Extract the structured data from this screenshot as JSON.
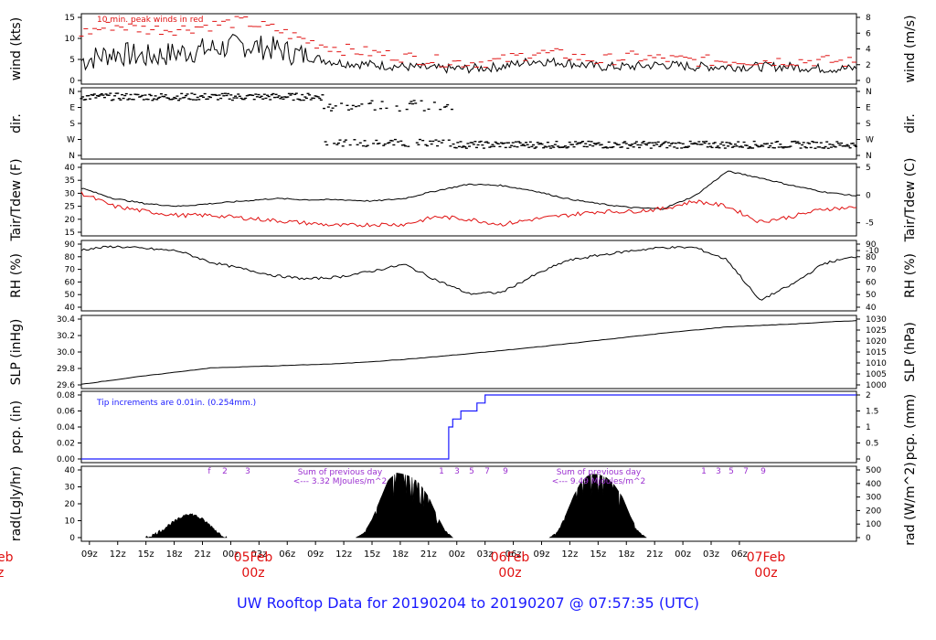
{
  "title": "UW Rooftop Data for 20190204  to  20190207 @ 07:57:35  (UTC)",
  "x_axis": {
    "hour_ticks": [
      "09z",
      "12z",
      "15z",
      "18z",
      "21z",
      "00z",
      "03z",
      "06z",
      "09z",
      "12z",
      "15z",
      "18z",
      "21z",
      "00z",
      "03z",
      "06z",
      "09z",
      "12z",
      "15z",
      "18z",
      "21z",
      "00z",
      "03z",
      "06z"
    ],
    "date_markers": [
      {
        "date": "05Feb",
        "hour": "00z"
      },
      {
        "date": "06Feb",
        "hour": "00z"
      },
      {
        "date": "07Feb",
        "hour": "00z"
      }
    ],
    "cutoff_label": {
      "date": "eb",
      "hour": "z"
    }
  },
  "colors": {
    "data": "#000000",
    "peak": "#e01010",
    "dewpoint": "#e01010",
    "precip": "#1a1aff",
    "note_purple": "#9b30d0",
    "title": "#1a1aff"
  },
  "chart_data": [
    {
      "type": "line",
      "name": "wind",
      "ylabel_left": "wind (kts)",
      "ylabel_right": "wind (m/s)",
      "annotation": "10 min. peak winds in red",
      "ylim": [
        0,
        18
      ],
      "yticks_left": [
        "0",
        "5",
        "10",
        "15"
      ],
      "yticks_right": [
        "0",
        "2",
        "4",
        "6",
        "8"
      ],
      "x_hours": [
        0,
        4,
        8,
        12,
        16,
        20,
        24,
        28,
        32,
        36,
        40,
        44,
        48,
        52,
        56,
        60,
        64,
        68,
        72,
        76,
        80,
        84,
        88,
        92,
        96
      ],
      "series": [
        {
          "name": "wind",
          "values": [
            5,
            7,
            6,
            7,
            8,
            9,
            8,
            6,
            4.5,
            4,
            3.5,
            3,
            3,
            3.5,
            5,
            4.5,
            3.5,
            3.5,
            4,
            3.5,
            3.5,
            3.5,
            3.5,
            3,
            3
          ]
        },
        {
          "name": "peak",
          "values": [
            12,
            14,
            13,
            13,
            14,
            15,
            13,
            10,
            8,
            7,
            6,
            5,
            4.5,
            5,
            7,
            6.5,
            5,
            6,
            5.5,
            5,
            5,
            5,
            5,
            5,
            4.5
          ]
        }
      ]
    },
    {
      "type": "scatter",
      "name": "direction",
      "ylabel_left": "dir.",
      "ylabel_right": "dir.",
      "yticks_left": [
        "N",
        "W",
        "S",
        "E",
        "N"
      ],
      "yticks_right": [
        "N",
        "W",
        "S",
        "E",
        "N"
      ]
    },
    {
      "type": "line",
      "name": "temperature",
      "ylabel_left": "Tair/Tdew (F)",
      "ylabel_right": "Tair/Tdew (C)",
      "ylim": [
        15,
        40
      ],
      "yticks_left": [
        "15",
        "20",
        "25",
        "30",
        "35",
        "40"
      ],
      "yticks_right": [
        "-10",
        "-5",
        "0",
        "5"
      ],
      "x_hours": [
        0,
        4,
        8,
        12,
        16,
        20,
        24,
        28,
        32,
        36,
        40,
        44,
        48,
        52,
        56,
        60,
        64,
        68,
        72,
        76,
        80,
        84,
        88,
        92,
        96
      ],
      "series": [
        {
          "name": "Tair",
          "values": [
            32,
            28,
            26,
            25,
            26,
            27,
            28,
            27.5,
            27.5,
            27,
            28,
            31,
            33.5,
            33,
            31,
            28,
            26,
            24.5,
            24,
            29,
            38.5,
            36,
            33,
            30.5,
            29
          ]
        },
        {
          "name": "Tdew",
          "values": [
            30,
            25,
            23,
            21.5,
            21.5,
            20.5,
            19.5,
            18.5,
            17.5,
            18,
            18,
            21,
            20,
            18,
            20,
            21.5,
            23,
            23,
            24,
            27,
            25,
            19,
            21,
            24,
            24.5
          ]
        }
      ]
    },
    {
      "type": "line",
      "name": "humidity",
      "ylabel_left": "RH (%)",
      "ylabel_right": "RH (%)",
      "ylim": [
        38,
        94
      ],
      "yticks_left": [
        "40",
        "50",
        "60",
        "70",
        "80",
        "90"
      ],
      "yticks_right": [
        "40",
        "50",
        "60",
        "70",
        "80",
        "90"
      ],
      "x_hours": [
        0,
        4,
        8,
        12,
        16,
        20,
        24,
        28,
        32,
        36,
        40,
        44,
        48,
        52,
        56,
        60,
        64,
        68,
        72,
        76,
        80,
        84,
        88,
        92,
        96
      ],
      "series": [
        {
          "name": "RH",
          "values": [
            89,
            92,
            90,
            88,
            78,
            72,
            66,
            63,
            65,
            70,
            76,
            62,
            50,
            51,
            66,
            79,
            84,
            88,
            91,
            91,
            80,
            44,
            58,
            77,
            83
          ]
        }
      ]
    },
    {
      "type": "line",
      "name": "pressure",
      "ylabel_left": "SLP (inHg)",
      "ylabel_right": "SLP (hPa)",
      "ylim": [
        29.52,
        30.45
      ],
      "yticks_left": [
        "29.6",
        "29.8",
        "30.0",
        "30.2",
        "30.4"
      ],
      "yticks_right": [
        "1000",
        "1005",
        "1010",
        "1015",
        "1020",
        "1025",
        "1030"
      ],
      "x_hours": [
        0,
        8,
        16,
        24,
        32,
        40,
        48,
        56,
        64,
        72,
        80,
        88,
        96
      ],
      "series": [
        {
          "name": "SLP",
          "values": [
            29.53,
            29.65,
            29.76,
            29.79,
            29.82,
            29.88,
            29.96,
            30.05,
            30.15,
            30.25,
            30.34,
            30.38,
            30.43
          ]
        }
      ]
    },
    {
      "type": "line",
      "name": "precipitation",
      "ylabel_left": "pcp. (in)",
      "ylabel_right": "pcp. (mm)",
      "annotation": "Tip increments are 0.01in. (0.254mm.)",
      "ylim": [
        0,
        0.08
      ],
      "yticks_left": [
        "0.00",
        "0.02",
        "0.04",
        "0.06",
        "0.08"
      ],
      "yticks_right": [
        "0",
        "0.5",
        "1",
        "1.5",
        "2"
      ],
      "series": [
        {
          "name": "pcp",
          "x_hours": [
            0,
            45.5,
            45.5,
            46,
            46,
            47,
            47,
            49,
            49,
            50,
            50,
            51.5,
            51.5,
            96
          ],
          "values": [
            0,
            0,
            0.04,
            0.04,
            0.05,
            0.05,
            0.06,
            0.06,
            0.07,
            0.07,
            0.08,
            0.08,
            0.08,
            0.08
          ]
        }
      ]
    },
    {
      "type": "area",
      "name": "radiation",
      "ylabel_left": "rad(Lgly/hr)",
      "ylabel_right": "rad (W/m^2)",
      "ylim": [
        0,
        45
      ],
      "yticks_left": [
        "0",
        "10",
        "20",
        "30",
        "40"
      ],
      "yticks_right": [
        "0",
        "100",
        "200",
        "300",
        "400",
        "500"
      ],
      "day_sums": [
        {
          "line1": "Sum of previous day",
          "line2": "<--- 3.32 MJoules/m^2"
        },
        {
          "line1": "Sum of previous day",
          "line2": "<--- 9.49 MJoules/m^2"
        }
      ],
      "hour_markers": [
        [
          "f",
          "2",
          "3"
        ],
        [
          "1",
          "3",
          "5",
          "7",
          "9"
        ],
        [
          "1",
          "3",
          "5",
          "7",
          "9"
        ]
      ],
      "series": [
        {
          "name": "day1",
          "x_hours": [
            8,
            9,
            10,
            11,
            12,
            13,
            14,
            15,
            16,
            17,
            18
          ],
          "values": [
            0,
            2,
            5,
            9,
            12,
            16,
            15,
            12,
            8,
            3,
            0
          ]
        },
        {
          "name": "day2",
          "x_hours": [
            34,
            35,
            36,
            37,
            38,
            39,
            40,
            41,
            42,
            43,
            44,
            45,
            46
          ],
          "values": [
            0,
            3,
            12,
            25,
            38,
            43,
            42,
            40,
            35,
            27,
            15,
            5,
            0
          ]
        },
        {
          "name": "day3",
          "x_hours": [
            58,
            59,
            60,
            61,
            62,
            63,
            64,
            65,
            66,
            67,
            68,
            69,
            70
          ],
          "values": [
            0,
            4,
            15,
            28,
            38,
            42,
            42,
            40,
            35,
            27,
            14,
            4,
            0
          ]
        }
      ]
    }
  ]
}
